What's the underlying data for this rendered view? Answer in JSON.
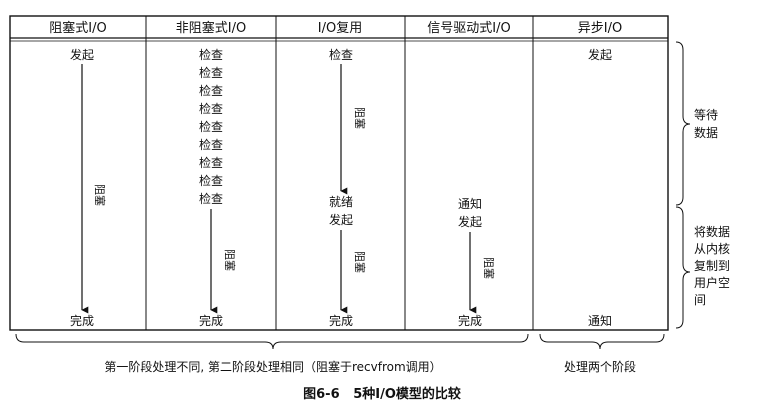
{
  "headers": [
    "阻塞式I/O",
    "非阻塞式I/O",
    "I/O复用",
    "信号驱动式I/O",
    "异步I/O"
  ],
  "col1": {
    "start": "发起",
    "block": "阻塞",
    "end": "完成"
  },
  "col2": {
    "checks": [
      "检查",
      "检查",
      "检查",
      "检查",
      "检查",
      "检查",
      "检查",
      "检查",
      "检查"
    ],
    "block": "阻塞",
    "end": "完成"
  },
  "col3": {
    "check": "检查",
    "block1": "阻塞",
    "ready": "就绪",
    "start": "发起",
    "block2": "阻塞",
    "end": "完成"
  },
  "col4": {
    "notify": "通知",
    "start": "发起",
    "block": "阻塞",
    "end": "完成"
  },
  "col5": {
    "start": "发起",
    "end": "通知"
  },
  "phase_wait": [
    "等待",
    "数据"
  ],
  "phase_copy": [
    "将数据",
    "从内核",
    "复制到",
    "用户空",
    "间"
  ],
  "bottom_left": "第一阶段处理不同, 第二阶段处理相同（阻塞于recvfrom调用）",
  "bottom_right": "处理两个阶段",
  "caption": "图6-6   5种I/O模型的比较"
}
